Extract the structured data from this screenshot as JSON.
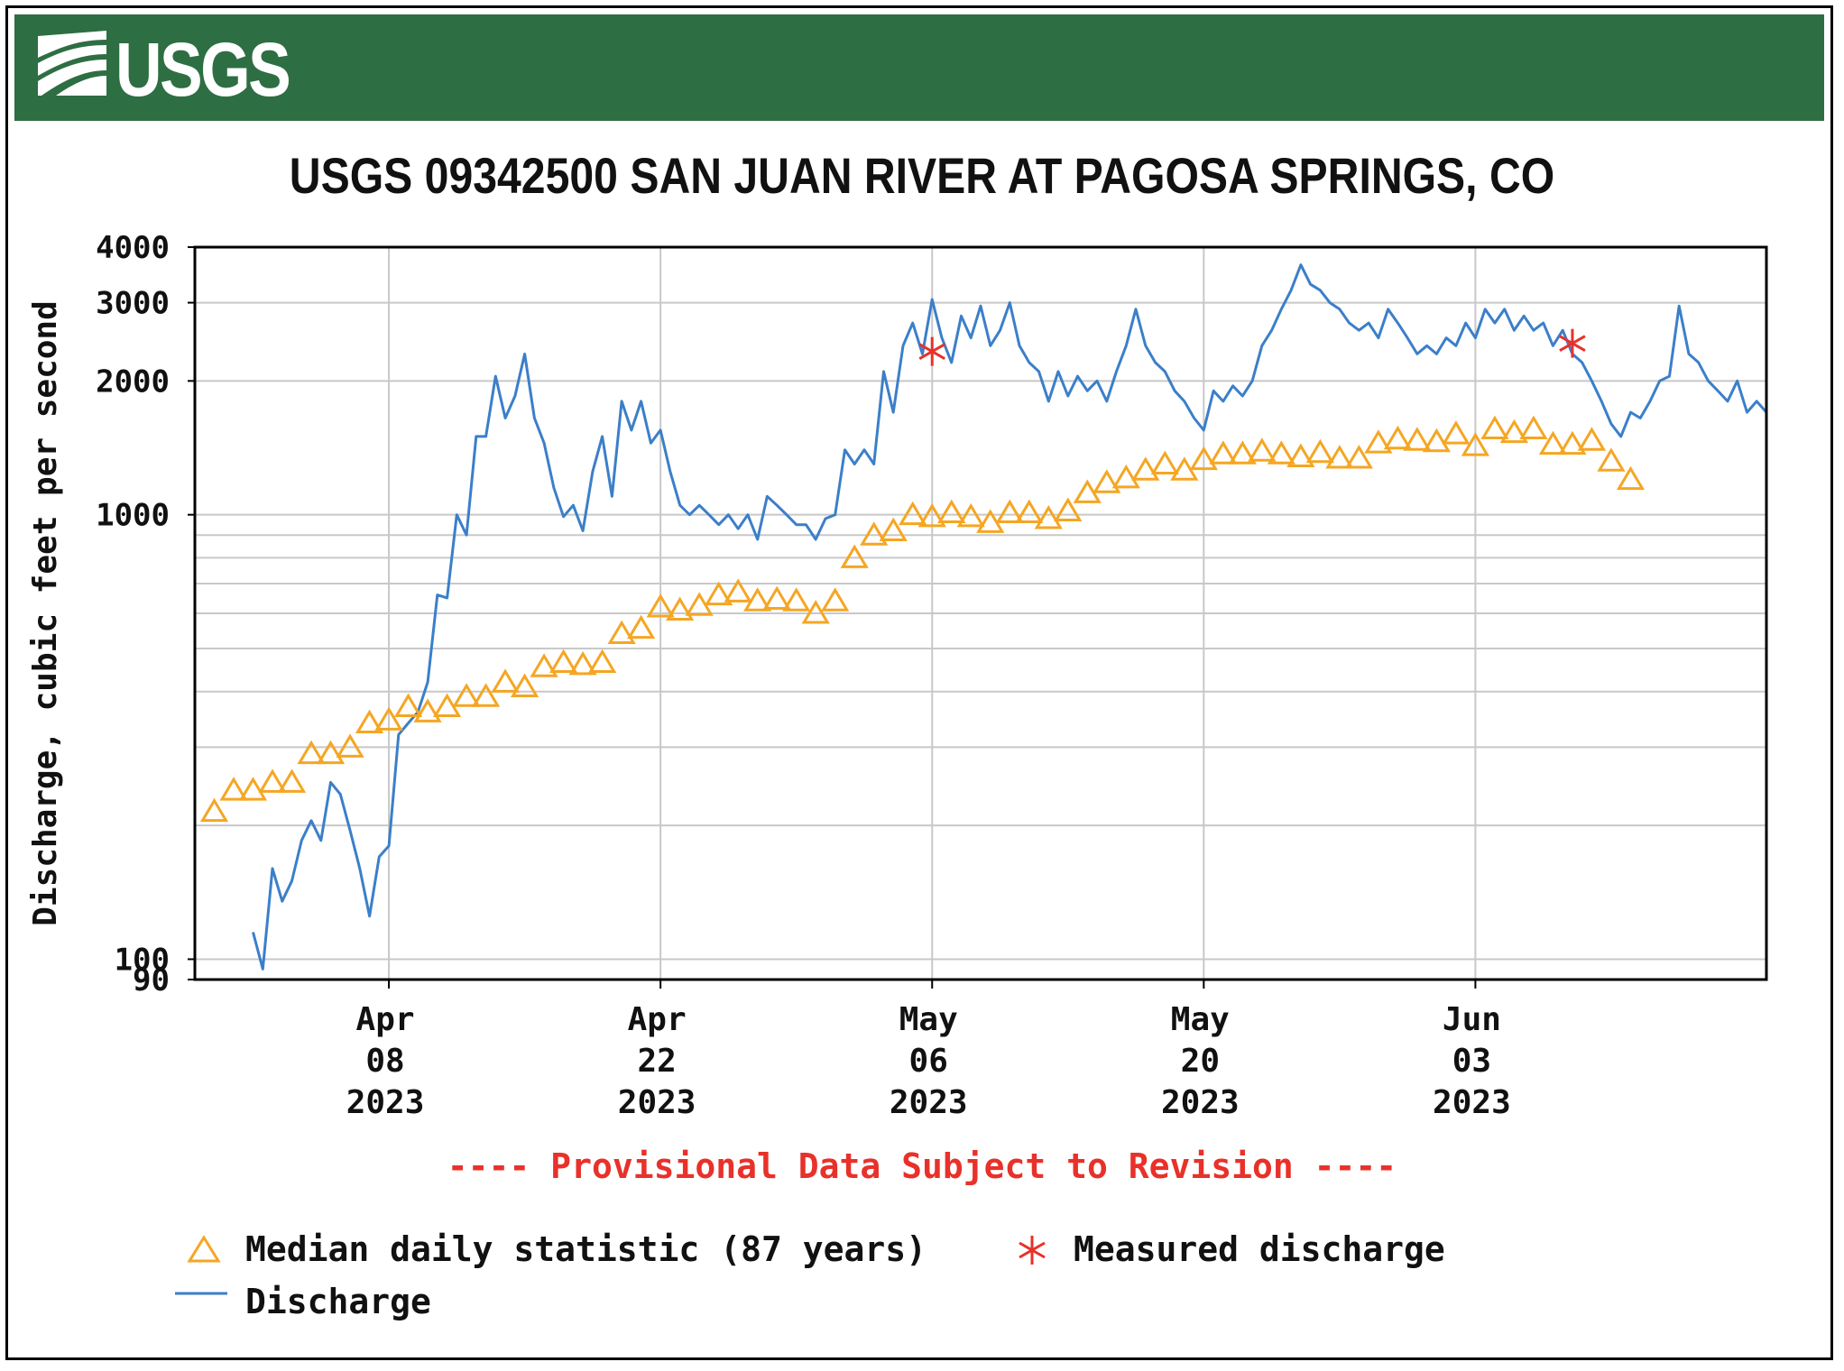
{
  "header": {
    "logo_text": "USGS"
  },
  "chart_data": {
    "type": "line",
    "title": "USGS 09342500 SAN JUAN RIVER AT PAGOSA SPRINGS, CO",
    "ylabel": "Discharge, cubic feet per second",
    "xlabel": "",
    "y_scale": "log",
    "ylim": [
      90,
      4000
    ],
    "xlim": [
      "2023-03-29",
      "2023-06-18"
    ],
    "grid": true,
    "y_tick_labels": [
      {
        "value": 4000,
        "label": "4000"
      },
      {
        "value": 3000,
        "label": "3000"
      },
      {
        "value": 2000,
        "label": "2000"
      },
      {
        "value": 1000,
        "label": "1000"
      },
      {
        "value": 100,
        "label": "100"
      },
      {
        "value": 90,
        "label": "90"
      }
    ],
    "y_gridlines": [
      100,
      200,
      300,
      400,
      500,
      600,
      700,
      800,
      900,
      1000,
      2000,
      3000
    ],
    "x_ticks": [
      {
        "date": "2023-04-08",
        "month": "Apr",
        "day": "08",
        "year": "2023"
      },
      {
        "date": "2023-04-22",
        "month": "Apr",
        "day": "22",
        "year": "2023"
      },
      {
        "date": "2023-05-06",
        "month": "May",
        "day": "06",
        "year": "2023"
      },
      {
        "date": "2023-05-20",
        "month": "May",
        "day": "20",
        "year": "2023"
      },
      {
        "date": "2023-06-03",
        "month": "Jun",
        "day": "03",
        "year": "2023"
      }
    ],
    "series": [
      {
        "name": "Discharge",
        "kind": "line",
        "color": "#3b7fc9",
        "points": [
          [
            "2023-04-01",
            115
          ],
          [
            "2023-04-01",
            95
          ],
          [
            "2023-04-02",
            160
          ],
          [
            "2023-04-02",
            135
          ],
          [
            "2023-04-03",
            150
          ],
          [
            "2023-04-03",
            185
          ],
          [
            "2023-04-04",
            205
          ],
          [
            "2023-04-04",
            185
          ],
          [
            "2023-04-05",
            250
          ],
          [
            "2023-04-05",
            235
          ],
          [
            "2023-04-06",
            195
          ],
          [
            "2023-04-06",
            160
          ],
          [
            "2023-04-07",
            125
          ],
          [
            "2023-04-07",
            170
          ],
          [
            "2023-04-08",
            180
          ],
          [
            "2023-04-08",
            320
          ],
          [
            "2023-04-09",
            340
          ],
          [
            "2023-04-09",
            360
          ],
          [
            "2023-04-10",
            420
          ],
          [
            "2023-04-10",
            660
          ],
          [
            "2023-04-11",
            650
          ],
          [
            "2023-04-11",
            1000
          ],
          [
            "2023-04-12",
            900
          ],
          [
            "2023-04-12",
            1500
          ],
          [
            "2023-04-13",
            1500
          ],
          [
            "2023-04-13",
            2050
          ],
          [
            "2023-04-14",
            1650
          ],
          [
            "2023-04-14",
            1850
          ],
          [
            "2023-04-15",
            2300
          ],
          [
            "2023-04-15",
            1650
          ],
          [
            "2023-04-16",
            1450
          ],
          [
            "2023-04-16",
            1150
          ],
          [
            "2023-04-17",
            990
          ],
          [
            "2023-04-17",
            1050
          ],
          [
            "2023-04-18",
            920
          ],
          [
            "2023-04-18",
            1250
          ],
          [
            "2023-04-19",
            1500
          ],
          [
            "2023-04-19",
            1100
          ],
          [
            "2023-04-20",
            1800
          ],
          [
            "2023-04-20",
            1550
          ],
          [
            "2023-04-21",
            1800
          ],
          [
            "2023-04-21",
            1450
          ],
          [
            "2023-04-22",
            1550
          ],
          [
            "2023-04-22",
            1250
          ],
          [
            "2023-04-23",
            1050
          ],
          [
            "2023-04-23",
            1000
          ],
          [
            "2023-04-24",
            1050
          ],
          [
            "2023-04-24",
            1000
          ],
          [
            "2023-04-25",
            950
          ],
          [
            "2023-04-25",
            1000
          ],
          [
            "2023-04-26",
            930
          ],
          [
            "2023-04-26",
            1000
          ],
          [
            "2023-04-27",
            880
          ],
          [
            "2023-04-27",
            1100
          ],
          [
            "2023-04-28",
            1050
          ],
          [
            "2023-04-28",
            1000
          ],
          [
            "2023-04-29",
            950
          ],
          [
            "2023-04-29",
            950
          ],
          [
            "2023-04-30",
            880
          ],
          [
            "2023-04-30",
            980
          ],
          [
            "2023-05-01",
            1000
          ],
          [
            "2023-05-01",
            1400
          ],
          [
            "2023-05-02",
            1300
          ],
          [
            "2023-05-02",
            1400
          ],
          [
            "2023-05-03",
            1300
          ],
          [
            "2023-05-03",
            2100
          ],
          [
            "2023-05-04",
            1700
          ],
          [
            "2023-05-04",
            2400
          ],
          [
            "2023-05-05",
            2700
          ],
          [
            "2023-05-05",
            2300
          ],
          [
            "2023-05-06",
            3050
          ],
          [
            "2023-05-06",
            2500
          ],
          [
            "2023-05-07",
            2200
          ],
          [
            "2023-05-07",
            2800
          ],
          [
            "2023-05-08",
            2500
          ],
          [
            "2023-05-08",
            2950
          ],
          [
            "2023-05-09",
            2400
          ],
          [
            "2023-05-09",
            2600
          ],
          [
            "2023-05-10",
            3000
          ],
          [
            "2023-05-10",
            2400
          ],
          [
            "2023-05-11",
            2200
          ],
          [
            "2023-05-11",
            2100
          ],
          [
            "2023-05-12",
            1800
          ],
          [
            "2023-05-12",
            2100
          ],
          [
            "2023-05-13",
            1850
          ],
          [
            "2023-05-13",
            2050
          ],
          [
            "2023-05-14",
            1900
          ],
          [
            "2023-05-14",
            2000
          ],
          [
            "2023-05-15",
            1800
          ],
          [
            "2023-05-15",
            2100
          ],
          [
            "2023-05-16",
            2400
          ],
          [
            "2023-05-16",
            2900
          ],
          [
            "2023-05-17",
            2400
          ],
          [
            "2023-05-17",
            2200
          ],
          [
            "2023-05-18",
            2100
          ],
          [
            "2023-05-18",
            1900
          ],
          [
            "2023-05-19",
            1800
          ],
          [
            "2023-05-19",
            1650
          ],
          [
            "2023-05-20",
            1550
          ],
          [
            "2023-05-20",
            1900
          ],
          [
            "2023-05-21",
            1800
          ],
          [
            "2023-05-21",
            1950
          ],
          [
            "2023-05-22",
            1850
          ],
          [
            "2023-05-22",
            2000
          ],
          [
            "2023-05-23",
            2400
          ],
          [
            "2023-05-23",
            2600
          ],
          [
            "2023-05-24",
            2900
          ],
          [
            "2023-05-24",
            3200
          ],
          [
            "2023-05-25",
            3650
          ],
          [
            "2023-05-25",
            3300
          ],
          [
            "2023-05-26",
            3200
          ],
          [
            "2023-05-26",
            3000
          ],
          [
            "2023-05-27",
            2900
          ],
          [
            "2023-05-27",
            2700
          ],
          [
            "2023-05-28",
            2600
          ],
          [
            "2023-05-28",
            2700
          ],
          [
            "2023-05-29",
            2500
          ],
          [
            "2023-05-29",
            2900
          ],
          [
            "2023-05-30",
            2700
          ],
          [
            "2023-05-30",
            2500
          ],
          [
            "2023-05-31",
            2300
          ],
          [
            "2023-05-31",
            2400
          ],
          [
            "2023-06-01",
            2300
          ],
          [
            "2023-06-01",
            2500
          ],
          [
            "2023-06-02",
            2400
          ],
          [
            "2023-06-02",
            2700
          ],
          [
            "2023-06-03",
            2500
          ],
          [
            "2023-06-03",
            2900
          ],
          [
            "2023-06-04",
            2700
          ],
          [
            "2023-06-04",
            2900
          ],
          [
            "2023-06-05",
            2600
          ],
          [
            "2023-06-05",
            2800
          ],
          [
            "2023-06-06",
            2600
          ],
          [
            "2023-06-06",
            2700
          ],
          [
            "2023-06-07",
            2400
          ],
          [
            "2023-06-07",
            2600
          ],
          [
            "2023-06-08",
            2300
          ],
          [
            "2023-06-08",
            2200
          ],
          [
            "2023-06-09",
            2000
          ],
          [
            "2023-06-09",
            1800
          ],
          [
            "2023-06-10",
            1600
          ],
          [
            "2023-06-10",
            1500
          ],
          [
            "2023-06-11",
            1700
          ],
          [
            "2023-06-11",
            1650
          ],
          [
            "2023-06-12",
            1800
          ],
          [
            "2023-06-12",
            2000
          ],
          [
            "2023-06-13",
            2050
          ],
          [
            "2023-06-13",
            2950
          ],
          [
            "2023-06-14",
            2300
          ],
          [
            "2023-06-14",
            2200
          ],
          [
            "2023-06-15",
            2000
          ],
          [
            "2023-06-15",
            1900
          ],
          [
            "2023-06-16",
            1800
          ],
          [
            "2023-06-16",
            2000
          ],
          [
            "2023-06-17",
            1700
          ],
          [
            "2023-06-17",
            1800
          ],
          [
            "2023-06-18",
            1700
          ]
        ]
      },
      {
        "name": "Median daily statistic (87 years)",
        "kind": "markers",
        "marker": "triangle",
        "color": "#f5a623",
        "points": [
          [
            "2023-03-30",
            215
          ],
          [
            "2023-03-31",
            240
          ],
          [
            "2023-04-01",
            240
          ],
          [
            "2023-04-02",
            250
          ],
          [
            "2023-04-03",
            250
          ],
          [
            "2023-04-04",
            290
          ],
          [
            "2023-04-05",
            290
          ],
          [
            "2023-04-06",
            300
          ],
          [
            "2023-04-07",
            340
          ],
          [
            "2023-04-08",
            345
          ],
          [
            "2023-04-09",
            370
          ],
          [
            "2023-04-10",
            360
          ],
          [
            "2023-04-11",
            370
          ],
          [
            "2023-04-12",
            390
          ],
          [
            "2023-04-13",
            390
          ],
          [
            "2023-04-14",
            420
          ],
          [
            "2023-04-15",
            410
          ],
          [
            "2023-04-16",
            455
          ],
          [
            "2023-04-17",
            465
          ],
          [
            "2023-04-18",
            460
          ],
          [
            "2023-04-19",
            465
          ],
          [
            "2023-04-20",
            540
          ],
          [
            "2023-04-21",
            555
          ],
          [
            "2023-04-22",
            620
          ],
          [
            "2023-04-23",
            610
          ],
          [
            "2023-04-24",
            625
          ],
          [
            "2023-04-25",
            660
          ],
          [
            "2023-04-26",
            670
          ],
          [
            "2023-04-27",
            640
          ],
          [
            "2023-04-28",
            645
          ],
          [
            "2023-04-29",
            640
          ],
          [
            "2023-04-30",
            600
          ],
          [
            "2023-05-01",
            640
          ],
          [
            "2023-05-02",
            800
          ],
          [
            "2023-05-03",
            900
          ],
          [
            "2023-05-04",
            920
          ],
          [
            "2023-05-05",
            1000
          ],
          [
            "2023-05-06",
            990
          ],
          [
            "2023-05-07",
            1010
          ],
          [
            "2023-05-08",
            990
          ],
          [
            "2023-05-09",
            960
          ],
          [
            "2023-05-10",
            1010
          ],
          [
            "2023-05-11",
            1010
          ],
          [
            "2023-05-12",
            980
          ],
          [
            "2023-05-13",
            1020
          ],
          [
            "2023-05-14",
            1120
          ],
          [
            "2023-05-15",
            1180
          ],
          [
            "2023-05-16",
            1210
          ],
          [
            "2023-05-17",
            1260
          ],
          [
            "2023-05-18",
            1300
          ],
          [
            "2023-05-19",
            1260
          ],
          [
            "2023-05-20",
            1330
          ],
          [
            "2023-05-21",
            1370
          ],
          [
            "2023-05-22",
            1370
          ],
          [
            "2023-05-23",
            1390
          ],
          [
            "2023-05-24",
            1370
          ],
          [
            "2023-05-25",
            1350
          ],
          [
            "2023-05-26",
            1380
          ],
          [
            "2023-05-27",
            1340
          ],
          [
            "2023-05-28",
            1340
          ],
          [
            "2023-05-29",
            1450
          ],
          [
            "2023-05-30",
            1480
          ],
          [
            "2023-05-31",
            1470
          ],
          [
            "2023-06-01",
            1460
          ],
          [
            "2023-06-02",
            1520
          ],
          [
            "2023-06-03",
            1430
          ],
          [
            "2023-06-04",
            1560
          ],
          [
            "2023-06-05",
            1530
          ],
          [
            "2023-06-06",
            1560
          ],
          [
            "2023-06-07",
            1440
          ],
          [
            "2023-06-08",
            1440
          ],
          [
            "2023-06-09",
            1470
          ],
          [
            "2023-06-10",
            1320
          ],
          [
            "2023-06-11",
            1200
          ]
        ]
      },
      {
        "name": "Measured discharge",
        "kind": "markers",
        "marker": "asterisk",
        "color": "#e8312a",
        "points": [
          [
            "2023-05-06",
            2330
          ],
          [
            "2023-06-08",
            2430
          ]
        ]
      }
    ],
    "annotation": "---- Provisional Data Subject to Revision ----",
    "legend": {
      "position": "bottom",
      "entries": [
        {
          "label": "Median daily statistic (87 years)",
          "symbol": "triangle",
          "color": "#f5a623"
        },
        {
          "label": "Measured discharge",
          "symbol": "asterisk",
          "color": "#e8312a"
        },
        {
          "label": "Discharge",
          "symbol": "line",
          "color": "#3b7fc9"
        }
      ]
    }
  }
}
